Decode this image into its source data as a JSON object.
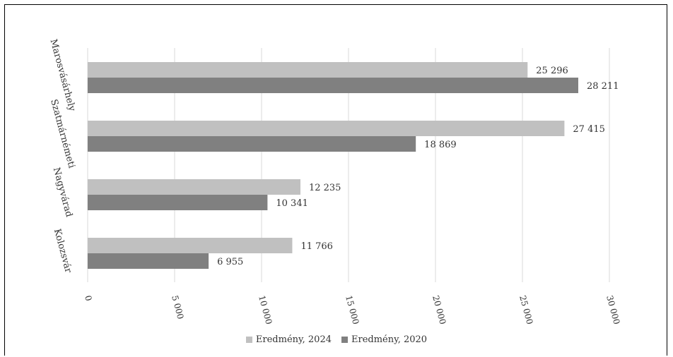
{
  "chart_data": {
    "type": "bar",
    "orientation": "horizontal",
    "categories": [
      "Marosvásárhely",
      "Szatmárnémeti",
      "Nagyvárad",
      "Kolozsvár"
    ],
    "series": [
      {
        "name": "Eredmény, 2024",
        "color": "#c0c0c0",
        "values": [
          25296,
          27415,
          12235,
          11766
        ],
        "labels": [
          "25 296",
          "27 415",
          "12 235",
          "11 766"
        ]
      },
      {
        "name": "Eredmény, 2020",
        "color": "#808080",
        "values": [
          28211,
          18869,
          10341,
          6955
        ],
        "labels": [
          "28 211",
          "18 869",
          "10 341",
          "6 955"
        ]
      }
    ],
    "xlim": [
      0,
      30000
    ],
    "x_ticks": [
      0,
      5000,
      10000,
      15000,
      20000,
      25000,
      30000
    ],
    "x_tick_labels": [
      "0",
      "5 000",
      "10 000",
      "15 000",
      "20 000",
      "25 000",
      "30 000"
    ],
    "grid": true,
    "legend_position": "bottom"
  }
}
